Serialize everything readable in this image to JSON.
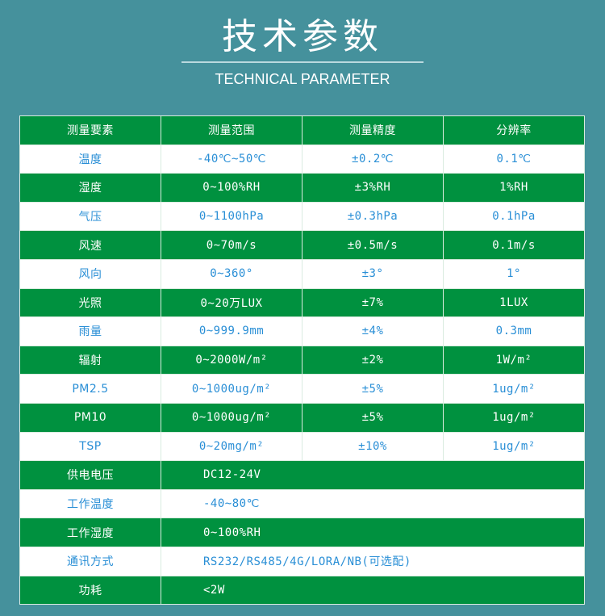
{
  "header": {
    "title": "技术参数",
    "subtitle": "TECHNICAL PARAMETER"
  },
  "colors": {
    "background": "#45919c",
    "green_row": "#00913f",
    "white_row": "#ffffff",
    "blue_text": "#2a8fd6"
  },
  "table": {
    "columns": [
      "测量要素",
      "测量范围",
      "测量精度",
      "分辨率"
    ],
    "rows": [
      [
        "温度",
        "-40℃~50℃",
        "±0.2℃",
        "0.1℃"
      ],
      [
        "湿度",
        "0~100%RH",
        "±3%RH",
        "1%RH"
      ],
      [
        "气压",
        "0~1100hPa",
        "±0.3hPa",
        "0.1hPa"
      ],
      [
        "风速",
        "0~70m/s",
        "±0.5m/s",
        "0.1m/s"
      ],
      [
        "风向",
        "0~360°",
        "±3°",
        "1°"
      ],
      [
        "光照",
        "0~20万LUX",
        "±7%",
        "1LUX"
      ],
      [
        "雨量",
        "0~999.9mm",
        "±4%",
        "0.3mm"
      ],
      [
        "辐射",
        "0~2000W/m²",
        "±2%",
        "1W/m²"
      ],
      [
        "PM2.5",
        "0~1000ug/m²",
        "±5%",
        "1ug/m²"
      ],
      [
        "PM10",
        "0~1000ug/m²",
        "±5%",
        "1ug/m²"
      ],
      [
        "TSP",
        "0~20mg/m²",
        "±10%",
        "1ug/m²"
      ]
    ],
    "spec_rows": [
      [
        "供电电压",
        "DC12-24V"
      ],
      [
        "工作温度",
        "-40~80℃"
      ],
      [
        "工作湿度",
        "0~100%RH"
      ],
      [
        "通讯方式",
        "RS232/RS485/4G/LORA/NB(可选配)"
      ],
      [
        "功耗",
        "<2W"
      ]
    ]
  }
}
